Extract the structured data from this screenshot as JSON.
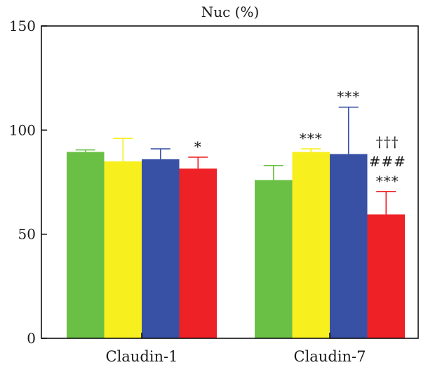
{
  "chart_data": {
    "type": "bar",
    "title": "Nuc (%)",
    "xlabel": "",
    "ylabel": "",
    "ylim": [
      0,
      150
    ],
    "yticks": [
      0,
      50,
      100,
      150
    ],
    "grid": false,
    "categories": [
      "Claudin-1",
      "Claudin-7"
    ],
    "series": [
      {
        "color": "#6abf45",
        "values": [
          89.5,
          76
        ],
        "errors": [
          1,
          7
        ]
      },
      {
        "color": "#f7ef1e",
        "values": [
          85,
          89.5
        ],
        "errors": [
          11,
          1.5
        ]
      },
      {
        "color": "#3951a5",
        "values": [
          86,
          88.5
        ],
        "errors": [
          5,
          22.5
        ]
      },
      {
        "color": "#ee2226",
        "values": [
          81.5,
          59.5
        ],
        "errors": [
          5.5,
          11
        ]
      }
    ],
    "annotations": [
      {
        "category": 0,
        "series": 3,
        "lines": [
          "*"
        ]
      },
      {
        "category": 1,
        "series": 1,
        "lines": [
          "***"
        ]
      },
      {
        "category": 1,
        "series": 2,
        "lines": [
          "***"
        ]
      },
      {
        "category": 1,
        "series": 3,
        "lines": [
          "†††",
          "###",
          "***"
        ]
      }
    ]
  }
}
